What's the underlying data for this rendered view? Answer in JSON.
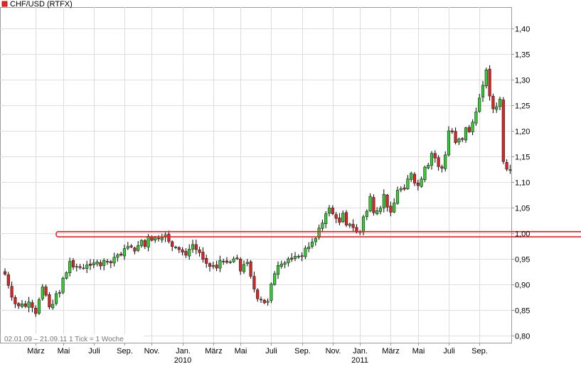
{
  "chart_data": {
    "type": "candlestick",
    "title": "CHF/USD (RTFX)",
    "period_text": "02.01.09 – 21.09.11   1 Tick = 1 Woche",
    "colors": {
      "up": "#33cc33",
      "down": "#dd2222",
      "wick": "#000000",
      "grid": "#dddddd",
      "axis": "#999999",
      "annotation": "#ee2222",
      "legend_box": "#ee2222"
    },
    "y_axis": {
      "min": 0.795,
      "max": 1.435,
      "ticks": [
        0.8,
        0.85,
        0.9,
        0.95,
        1.0,
        1.05,
        1.1,
        1.15,
        1.2,
        1.25,
        1.3,
        1.35,
        1.4
      ],
      "tick_labels": [
        "0,80",
        "0,85",
        "0,90",
        "0,95",
        "1,00",
        "1,05",
        "1,10",
        "1,15",
        "1,20",
        "1,25",
        "1,30",
        "1,35",
        "1,40"
      ]
    },
    "x_axis": {
      "tick_weeks": [
        9,
        17,
        26,
        35,
        43,
        52,
        61,
        69,
        78,
        87,
        96,
        104,
        113,
        121,
        130,
        139
      ],
      "tick_labels": [
        "März",
        "Mai",
        "Juli",
        "Sep.",
        "Nov.",
        "Jan.",
        "März",
        "Mai",
        "Juli",
        "Sep.",
        "Nov.",
        "Jan.",
        "März",
        "Mai",
        "Juli",
        "Sep."
      ],
      "year_labels": [
        {
          "label": "2010",
          "week": 52
        },
        {
          "label": "2011",
          "week": 104
        }
      ]
    },
    "support_band": {
      "low": 0.993,
      "high": 1.003,
      "start_week": 15
    },
    "week_close": [
      0.92,
      0.898,
      0.875,
      0.862,
      0.858,
      0.862,
      0.857,
      0.866,
      0.855,
      0.843,
      0.87,
      0.895,
      0.879,
      0.856,
      0.861,
      0.882,
      0.884,
      0.912,
      0.923,
      0.945,
      0.934,
      0.935,
      0.933,
      0.932,
      0.938,
      0.937,
      0.942,
      0.944,
      0.936,
      0.947,
      0.945,
      0.942,
      0.953,
      0.958,
      0.957,
      0.97,
      0.974,
      0.973,
      0.965,
      0.976,
      0.986,
      0.974,
      0.994,
      0.986,
      0.992,
      0.989,
      0.991,
      0.997,
      0.984,
      0.974,
      0.973,
      0.968,
      0.963,
      0.957,
      0.969,
      0.978,
      0.968,
      0.962,
      0.949,
      0.941,
      0.935,
      0.937,
      0.932,
      0.947,
      0.944,
      0.943,
      0.944,
      0.95,
      0.95,
      0.926,
      0.939,
      0.943,
      0.916,
      0.891,
      0.872,
      0.87,
      0.864,
      0.867,
      0.901,
      0.921,
      0.937,
      0.94,
      0.942,
      0.95,
      0.949,
      0.955,
      0.955,
      0.955,
      0.971,
      0.973,
      0.983,
      0.99,
      1.01,
      1.02,
      1.038,
      1.049,
      1.038,
      1.029,
      1.021,
      1.039,
      1.016,
      1.018,
      1.011,
      1.002,
      1.003,
      1.032,
      1.043,
      1.072,
      1.04,
      1.044,
      1.049,
      1.076,
      1.051,
      1.041,
      1.059,
      1.084,
      1.087,
      1.086,
      1.106,
      1.117,
      1.098,
      1.093,
      1.106,
      1.129,
      1.133,
      1.156,
      1.147,
      1.13,
      1.127,
      1.153,
      1.2,
      1.198,
      1.177,
      1.184,
      1.183,
      1.206,
      1.198,
      1.217,
      1.237,
      1.264,
      1.289,
      1.319,
      1.268,
      1.243,
      1.247,
      1.262,
      1.14,
      1.125,
      1.124
    ],
    "week_open_2009_01": 0.925
  }
}
